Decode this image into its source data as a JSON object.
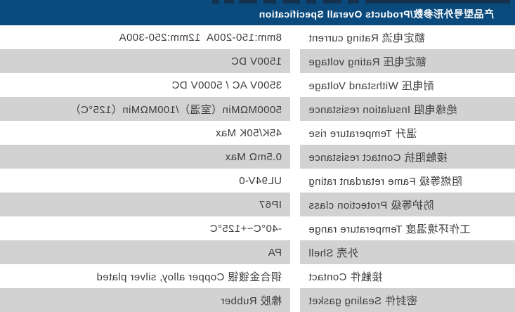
{
  "header": {
    "title": "产品型号外形参数/Products Overall Specification"
  },
  "table": {
    "rows": [
      {
        "label": "额定电流 Rating current",
        "value": "8mm:150-200A  12mm:250-300A"
      },
      {
        "label": "额定电压 Rating voltage",
        "value": "1500V DC"
      },
      {
        "label": "耐电压 Withstand Voltage",
        "value": "3500V AC / 5000V DC"
      },
      {
        "label": "绝缘电阻 Insulation resistance",
        "value": "5000MΩMin（室温）/100MΩMin（125°C）"
      },
      {
        "label": "温升 Temperature rise",
        "value": "45K/50K Max"
      },
      {
        "label": "接触阻抗 Contact resistance",
        "value": "0.5mΩ Max"
      },
      {
        "label": "阻燃等级 Fame retardant rating",
        "value": "UL94V-0"
      },
      {
        "label": "防护等级 Protection class",
        "value": "IP67"
      },
      {
        "label": "工作环境温度 Temperature range",
        "value": "-40°C~+125°C"
      },
      {
        "label": "外壳 Shell",
        "value": "PA"
      },
      {
        "label": "接触件 Contact",
        "value": "铜合金镀银 Copper alloy, silver plated"
      },
      {
        "label": "密封件 Sealing gasket",
        "value": "橡胶 Rubber"
      }
    ]
  },
  "colors": {
    "header_bg": "#0a4a7c",
    "header_accent": "#16314e",
    "alt_row_bg": "#d2d2d2",
    "row_bg": "#ffffff",
    "text": "#3d3d3d",
    "title_text": "#ffffff"
  }
}
